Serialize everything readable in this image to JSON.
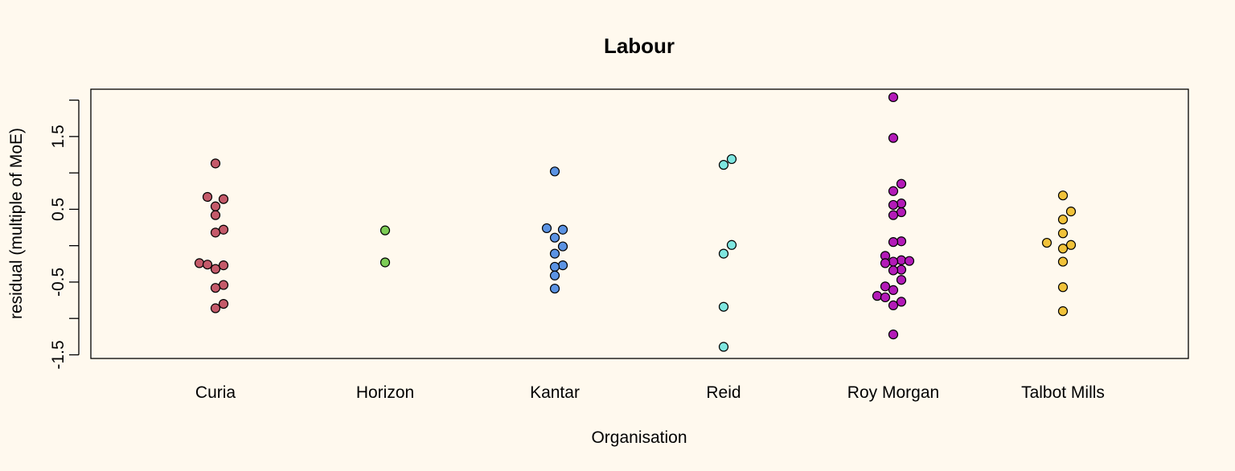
{
  "chart_data": {
    "type": "scatter",
    "title": "Labour",
    "xlabel": "Organisation",
    "ylabel": "residual (multiple of MoE)",
    "ylim": [
      -1.55,
      2.15
    ],
    "yticks": [
      -1.5,
      -0.5,
      0.5,
      1.5
    ],
    "ytick_labels": [
      "-1.5",
      "-0.5",
      "0.5",
      "1.5"
    ],
    "grid": false,
    "categories": [
      "Curia",
      "Horizon",
      "Kantar",
      "Reid",
      "Roy Morgan",
      "Talbot Mills"
    ],
    "series": [
      {
        "category": "Curia",
        "color": "#c45a6a",
        "points": [
          {
            "y": 1.13,
            "dx": 0
          },
          {
            "y": 0.67,
            "dx": -1
          },
          {
            "y": 0.64,
            "dx": 1
          },
          {
            "y": 0.54,
            "dx": 0
          },
          {
            "y": 0.42,
            "dx": 0
          },
          {
            "y": 0.22,
            "dx": 1
          },
          {
            "y": 0.18,
            "dx": 0
          },
          {
            "y": -0.24,
            "dx": -2
          },
          {
            "y": -0.26,
            "dx": -1
          },
          {
            "y": -0.27,
            "dx": 1
          },
          {
            "y": -0.32,
            "dx": 0
          },
          {
            "y": -0.54,
            "dx": 1
          },
          {
            "y": -0.58,
            "dx": 0
          },
          {
            "y": -0.8,
            "dx": 1
          },
          {
            "y": -0.86,
            "dx": 0
          }
        ]
      },
      {
        "category": "Horizon",
        "color": "#7ccc55",
        "points": [
          {
            "y": 0.21,
            "dx": 0
          },
          {
            "y": -0.23,
            "dx": 0
          }
        ]
      },
      {
        "category": "Kantar",
        "color": "#5b93e3",
        "points": [
          {
            "y": 1.02,
            "dx": 0
          },
          {
            "y": 0.24,
            "dx": -1
          },
          {
            "y": 0.22,
            "dx": 1
          },
          {
            "y": 0.11,
            "dx": 0
          },
          {
            "y": -0.01,
            "dx": 1
          },
          {
            "y": -0.11,
            "dx": 0
          },
          {
            "y": -0.27,
            "dx": 1
          },
          {
            "y": -0.29,
            "dx": 0
          },
          {
            "y": -0.41,
            "dx": 0
          },
          {
            "y": -0.59,
            "dx": 0
          }
        ]
      },
      {
        "category": "Reid",
        "color": "#7ee6e0",
        "points": [
          {
            "y": 1.19,
            "dx": 1
          },
          {
            "y": 1.11,
            "dx": 0
          },
          {
            "y": 0.01,
            "dx": 1
          },
          {
            "y": -0.11,
            "dx": 0
          },
          {
            "y": -0.84,
            "dx": 0
          },
          {
            "y": -1.39,
            "dx": 0
          }
        ]
      },
      {
        "category": "Roy Morgan",
        "color": "#b31ab8",
        "points": [
          {
            "y": 2.04,
            "dx": 0
          },
          {
            "y": 1.48,
            "dx": 0
          },
          {
            "y": 0.85,
            "dx": 1
          },
          {
            "y": 0.75,
            "dx": 0
          },
          {
            "y": 0.58,
            "dx": 1
          },
          {
            "y": 0.56,
            "dx": 0
          },
          {
            "y": 0.46,
            "dx": 1
          },
          {
            "y": 0.42,
            "dx": 0
          },
          {
            "y": 0.06,
            "dx": 1
          },
          {
            "y": 0.05,
            "dx": 0
          },
          {
            "y": -0.14,
            "dx": -1
          },
          {
            "y": -0.2,
            "dx": 1
          },
          {
            "y": -0.21,
            "dx": 2
          },
          {
            "y": -0.22,
            "dx": 0
          },
          {
            "y": -0.24,
            "dx": -1
          },
          {
            "y": -0.33,
            "dx": 1
          },
          {
            "y": -0.34,
            "dx": 0
          },
          {
            "y": -0.47,
            "dx": 1
          },
          {
            "y": -0.56,
            "dx": -1
          },
          {
            "y": -0.61,
            "dx": 0
          },
          {
            "y": -0.69,
            "dx": -2
          },
          {
            "y": -0.71,
            "dx": -1
          },
          {
            "y": -0.77,
            "dx": 1
          },
          {
            "y": -0.82,
            "dx": 0
          },
          {
            "y": -1.22,
            "dx": 0
          }
        ]
      },
      {
        "category": "Talbot Mills",
        "color": "#f0c23a",
        "points": [
          {
            "y": 0.69,
            "dx": 0
          },
          {
            "y": 0.47,
            "dx": 1
          },
          {
            "y": 0.36,
            "dx": 0
          },
          {
            "y": 0.17,
            "dx": 0
          },
          {
            "y": 0.04,
            "dx": -2
          },
          {
            "y": 0.01,
            "dx": 1
          },
          {
            "y": -0.04,
            "dx": 0
          },
          {
            "y": -0.22,
            "dx": 0
          },
          {
            "y": -0.57,
            "dx": 0
          },
          {
            "y": -0.9,
            "dx": 0
          }
        ]
      }
    ]
  }
}
